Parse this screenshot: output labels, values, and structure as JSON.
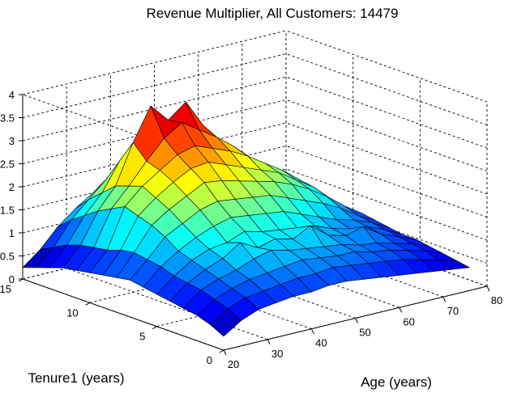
{
  "chart_data": {
    "type": "surface",
    "title": "Revenue Multiplier, All Customers: 14479",
    "xlabel": "Age (years)",
    "ylabel": "Tenure1 (years)",
    "zlabel": "",
    "xlim": [
      20,
      80
    ],
    "ylim": [
      0,
      15
    ],
    "zlim": [
      0,
      4
    ],
    "xticks": [
      "20",
      "30",
      "40",
      "50",
      "60",
      "70",
      "80"
    ],
    "yticks": [
      "0",
      "5",
      "10",
      "15"
    ],
    "zticks": [
      "0",
      "0.5",
      "1",
      "1.5",
      "2",
      "2.5",
      "3",
      "3.5",
      "4"
    ],
    "grid": true,
    "colormap": "jet",
    "ages": [
      20,
      24,
      28,
      32,
      36,
      40,
      44,
      48,
      52,
      56,
      60,
      64,
      68,
      72,
      76
    ],
    "tenures": [
      0,
      1,
      2,
      3,
      4,
      5,
      6,
      7,
      8,
      9,
      10,
      11,
      12,
      13,
      14,
      15
    ],
    "z": [
      [
        0.3,
        0.55,
        0.7,
        0.75,
        0.8,
        0.8,
        0.85,
        0.85,
        0.8,
        0.75,
        0.7,
        0.65,
        0.6,
        0.55,
        0.5
      ],
      [
        0.45,
        0.7,
        0.85,
        0.9,
        0.95,
        1.0,
        1.0,
        1.05,
        1.0,
        0.95,
        0.9,
        0.85,
        0.75,
        0.65,
        0.55
      ],
      [
        0.55,
        0.8,
        0.95,
        1.05,
        1.1,
        1.15,
        1.2,
        1.15,
        1.1,
        1.1,
        1.0,
        0.95,
        0.85,
        0.75,
        0.6
      ],
      [
        0.6,
        0.9,
        1.05,
        1.15,
        1.3,
        1.4,
        1.3,
        1.25,
        1.2,
        1.15,
        1.05,
        1.0,
        0.9,
        0.8,
        0.65
      ],
      [
        0.65,
        0.95,
        1.15,
        1.3,
        1.55,
        1.35,
        1.45,
        1.35,
        1.55,
        1.25,
        1.15,
        1.25,
        1.0,
        0.85,
        0.7
      ],
      [
        0.7,
        1.0,
        1.25,
        1.4,
        1.45,
        1.6,
        1.5,
        1.45,
        1.4,
        1.35,
        1.2,
        1.1,
        1.05,
        0.9,
        0.7
      ],
      [
        0.75,
        1.1,
        1.35,
        1.55,
        1.7,
        1.8,
        1.75,
        1.7,
        1.65,
        1.5,
        1.35,
        1.2,
        1.1,
        0.95,
        0.75
      ],
      [
        0.8,
        1.15,
        1.55,
        1.75,
        1.95,
        2.05,
        2.0,
        1.95,
        1.9,
        1.75,
        1.6,
        1.45,
        1.25,
        1.0,
        0.8
      ],
      [
        0.75,
        1.2,
        1.7,
        1.95,
        2.15,
        2.35,
        2.3,
        2.2,
        2.1,
        2.0,
        1.85,
        1.65,
        1.4,
        1.1,
        0.85
      ],
      [
        0.7,
        1.15,
        1.8,
        2.1,
        2.35,
        2.55,
        2.6,
        2.45,
        2.3,
        2.15,
        2.0,
        1.75,
        1.5,
        1.15,
        0.8
      ],
      [
        0.65,
        1.05,
        1.9,
        2.25,
        2.5,
        2.75,
        2.85,
        2.7,
        2.55,
        2.35,
        2.1,
        1.85,
        1.55,
        1.2,
        0.75
      ],
      [
        0.6,
        1.0,
        1.75,
        2.15,
        2.6,
        3.0,
        3.25,
        3.0,
        2.75,
        2.45,
        2.1,
        1.8,
        1.45,
        1.1,
        0.7
      ],
      [
        0.55,
        0.95,
        1.6,
        2.05,
        2.9,
        3.6,
        3.2,
        3.5,
        2.9,
        2.4,
        2.0,
        1.7,
        1.35,
        1.0,
        0.65
      ],
      [
        0.45,
        0.85,
        1.4,
        1.8,
        2.4,
        2.8,
        2.6,
        2.55,
        2.3,
        2.0,
        1.7,
        1.4,
        1.1,
        0.85,
        0.55
      ],
      [
        0.35,
        0.7,
        1.2,
        1.55,
        1.9,
        2.2,
        2.1,
        2.0,
        1.85,
        1.65,
        1.4,
        1.15,
        0.9,
        0.7,
        0.45
      ],
      [
        0.25,
        0.55,
        0.95,
        1.25,
        1.5,
        1.65,
        1.6,
        1.55,
        1.4,
        1.25,
        1.05,
        0.85,
        0.7,
        0.55,
        0.35
      ]
    ]
  }
}
